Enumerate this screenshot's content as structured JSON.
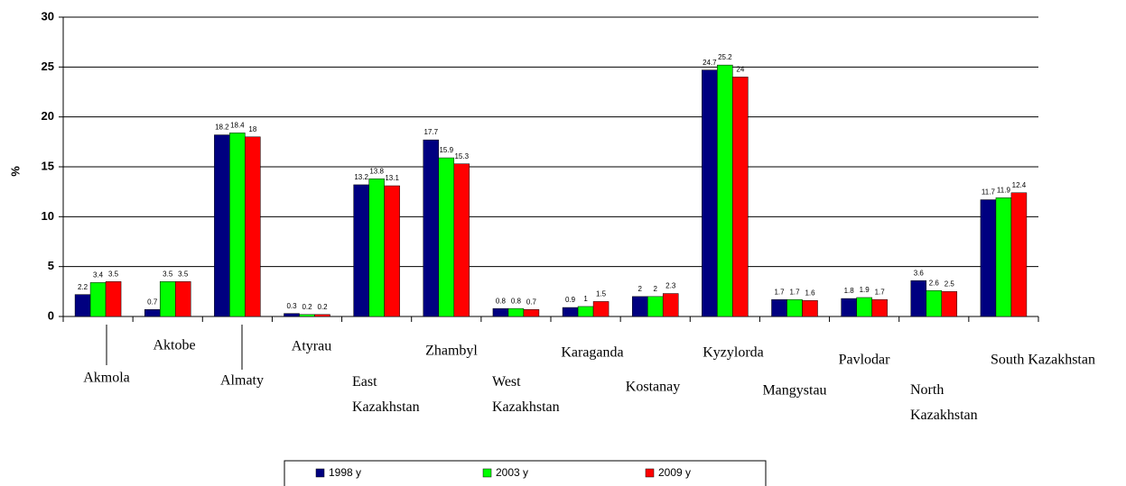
{
  "chart_data": {
    "type": "bar",
    "y_label": "%",
    "categories": [
      "Akmola",
      "Aktobe",
      "Almaty",
      "Atyrau",
      "East Kazakhstan",
      "Zhambyl",
      "West Kazakhstan",
      "Karaganda",
      "Kostanay",
      "Kyzylorda",
      "Mangystau",
      "Pavlodar",
      "North Kazakhstan",
      "South Kazakhstan"
    ],
    "series": [
      {
        "name": "1998 y",
        "color": "#000080",
        "values": [
          2.2,
          0.7,
          18.2,
          0.3,
          13.2,
          17.7,
          0.8,
          0.9,
          2,
          24.7,
          1.7,
          1.8,
          3.6,
          11.7
        ]
      },
      {
        "name": "2003 y",
        "color": "#00ff00",
        "values": [
          3.4,
          3.5,
          18.4,
          0.2,
          13.8,
          15.9,
          0.8,
          1,
          2,
          25.2,
          1.7,
          1.9,
          2.6,
          11.9
        ]
      },
      {
        "name": "2009 y",
        "color": "#ff0000",
        "values": [
          3.5,
          3.5,
          18,
          0.2,
          13.1,
          15.3,
          0.7,
          1.5,
          2.3,
          24,
          1.6,
          1.7,
          2.5,
          12.4
        ]
      }
    ],
    "ylim": [
      0,
      30
    ],
    "yticks": [
      0,
      5,
      10,
      15,
      20,
      25,
      30
    ],
    "grid": true,
    "legend": "bottom"
  }
}
